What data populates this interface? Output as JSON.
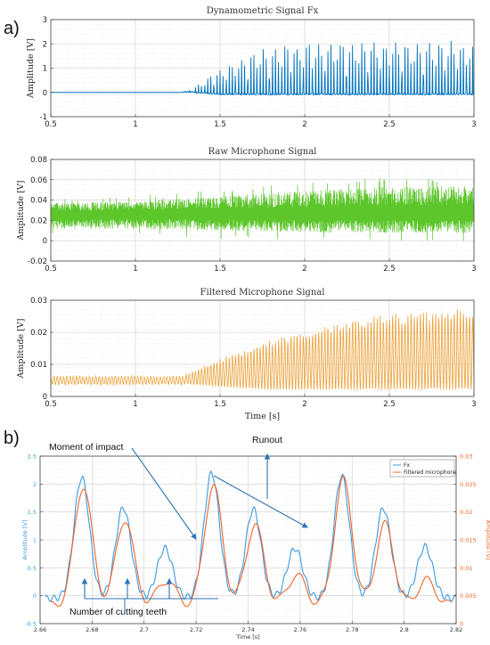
{
  "panel_labels": {
    "a": "a)",
    "b": "b)"
  },
  "annotations": {
    "impact": "Moment of impact",
    "runout": "Runout",
    "teeth": "Number of cutting teeth"
  },
  "colors": {
    "fx": "#0072BD",
    "mic": "#5CC62B",
    "filtered": "#EDA23A",
    "b_fx": "#3B9AE1",
    "b_mic": "#F0642A"
  },
  "chart_data": [
    {
      "type": "line",
      "title": "Dynamometric Signal Fx",
      "xlabel": "",
      "ylabel": "Amplitude [V]",
      "xlim": [
        0.5,
        3
      ],
      "ylim": [
        -1,
        3
      ],
      "xticks": [
        "0.5",
        "1",
        "1.5",
        "2",
        "2.5",
        "3"
      ],
      "yticks": [
        "-1",
        "0",
        "1",
        "2",
        "3"
      ],
      "grid": true,
      "series": [
        {
          "description": "baseline ~0 V until ~1.3 s, then periodic impact spikes growing to ~2.2 V peaks, minima ~0 to -0.1 V",
          "envelope_x": [
            0.5,
            1.3,
            1.4,
            1.5,
            1.6,
            1.7,
            1.8,
            2.0,
            2.2,
            2.5,
            3.0
          ],
          "envelope_max": [
            0.0,
            0.0,
            0.5,
            1.0,
            1.4,
            1.7,
            1.9,
            2.1,
            2.2,
            2.2,
            2.2
          ],
          "envelope_min": [
            0.0,
            0.0,
            -0.05,
            -0.1,
            -0.1,
            -0.1,
            -0.1,
            -0.1,
            -0.1,
            -0.1,
            -0.1
          ]
        }
      ]
    },
    {
      "type": "line",
      "title": "Raw Microphone Signal",
      "xlabel": "",
      "ylabel": "Amplitude [V]",
      "xlim": [
        0.5,
        3
      ],
      "ylim": [
        -0.02,
        0.08
      ],
      "xticks": [
        "0.5",
        "1",
        "1.5",
        "2",
        "2.5",
        "3"
      ],
      "yticks": [
        "-0.02",
        "0",
        "0.02",
        "0.04",
        "0.06",
        "0.08"
      ],
      "grid": true,
      "series": [
        {
          "description": "dense noisy signal centred ~0.026 V, band widening after ~1.5 s with spikes up to ~0.065 V",
          "envelope_x": [
            0.5,
            1.0,
            1.5,
            2.0,
            2.5,
            3.0
          ],
          "envelope_max": [
            0.04,
            0.042,
            0.048,
            0.055,
            0.06,
            0.062
          ],
          "envelope_min": [
            0.008,
            0.008,
            0.006,
            0.004,
            0.003,
            0.003
          ]
        }
      ]
    },
    {
      "type": "line",
      "title": "Filtered Microphone Signal",
      "xlabel": "Time [s]",
      "ylabel": "Amplitude [V]",
      "xlim": [
        0.5,
        3
      ],
      "ylim": [
        0,
        0.03
      ],
      "xticks": [
        "0.5",
        "1",
        "1.5",
        "2",
        "2.5",
        "3"
      ],
      "yticks": [
        "0",
        "0.01",
        "0.02",
        "0.03"
      ],
      "grid": true,
      "series": [
        {
          "description": "~0.005 V baseline until ~1.3 s, then periodic oscillation growing to ~0.027 V peaks",
          "envelope_x": [
            0.5,
            1.3,
            1.5,
            1.8,
            2.0,
            2.2,
            2.5,
            2.8,
            3.0
          ],
          "envelope_max": [
            0.006,
            0.007,
            0.012,
            0.018,
            0.021,
            0.024,
            0.026,
            0.027,
            0.028
          ],
          "envelope_min": [
            0.004,
            0.004,
            0.003,
            0.002,
            0.002,
            0.002,
            0.002,
            0.002,
            0.002
          ]
        }
      ]
    },
    {
      "type": "line",
      "title": "",
      "xlabel": "Time [s]",
      "ylabel_left": "Amplitude [V]",
      "ylabel_right": "Amplitude [V]",
      "xlim": [
        2.66,
        2.82
      ],
      "ylim_left": [
        -0.5,
        2.5
      ],
      "ylim_right": [
        0,
        0.03
      ],
      "xticks": [
        "2.66",
        "2.68",
        "2.7",
        "2.72",
        "2.74",
        "2.76",
        "2.78",
        "2.8",
        "2.82"
      ],
      "yticks_left": [
        "-0.5",
        "0",
        "0.5",
        "1",
        "1.5",
        "2",
        "2.5"
      ],
      "yticks_right": [
        "0",
        "0.005",
        "0.01",
        "0.015",
        "0.02",
        "0.025",
        "0.03"
      ],
      "legend": "top-right",
      "grid": true,
      "series": [
        {
          "name": "Fx",
          "axis": "left",
          "peaks_x": [
            2.676,
            2.692,
            2.708,
            2.726,
            2.742,
            2.758,
            2.776,
            2.792,
            2.808
          ],
          "peaks_y": [
            2.12,
            1.58,
            0.85,
            2.2,
            1.55,
            0.85,
            2.15,
            1.57,
            0.88
          ],
          "baseline": -0.05
        },
        {
          "name": "Filtered microphone",
          "axis": "right",
          "peaks_x": [
            2.676,
            2.692,
            2.708,
            2.726,
            2.742,
            2.758,
            2.776,
            2.792,
            2.808
          ],
          "peaks_y": [
            0.0255,
            0.0195,
            0.0085,
            0.0255,
            0.0185,
            0.0095,
            0.0265,
            0.0185,
            0.0085
          ],
          "troughs_y": 0.004
        }
      ]
    }
  ]
}
